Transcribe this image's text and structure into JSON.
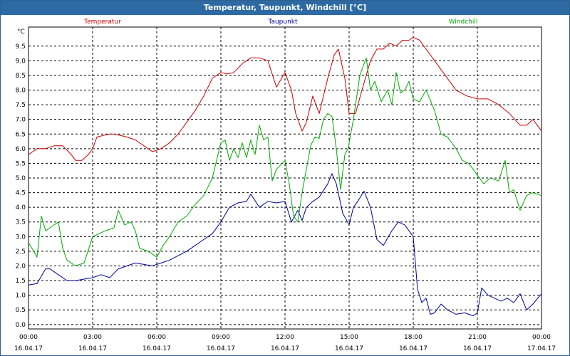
{
  "window": {
    "title": "Temperatur, Taupunkt, Windchill [°C]"
  },
  "chart_data": {
    "type": "line",
    "title": "Temperatur, Taupunkt, Windchill [°C]",
    "ylabel": "°C",
    "xlabel": "",
    "grid": true,
    "xlim": [
      0,
      24
    ],
    "ylim": [
      -0.15,
      10.15
    ],
    "yticks": [
      "0.0",
      "0.5",
      "1.0",
      "1.5",
      "2.0",
      "2.5",
      "3.0",
      "3.5",
      "4.0",
      "4.5",
      "5.0",
      "5.5",
      "6.0",
      "6.5",
      "7.0",
      "7.5",
      "8.0",
      "8.5",
      "9.0",
      "9.5"
    ],
    "xticks": [
      {
        "x": 0,
        "time": "00:00",
        "date": "16.04.17"
      },
      {
        "x": 3,
        "time": "03:00",
        "date": "16.04.17"
      },
      {
        "x": 6,
        "time": "06:00",
        "date": "16.04.17"
      },
      {
        "x": 9,
        "time": "09:00",
        "date": "16.04.17"
      },
      {
        "x": 12,
        "time": "12:00",
        "date": "16.04.17"
      },
      {
        "x": 15,
        "time": "15:00",
        "date": "16.04.17"
      },
      {
        "x": 18,
        "time": "18:00",
        "date": "16.04.17"
      },
      {
        "x": 21,
        "time": "21:00",
        "date": "16.04.17"
      },
      {
        "x": 24,
        "time": "00:00",
        "date": "17.04.17"
      }
    ],
    "series": [
      {
        "name": "Temperatur",
        "color": "#cc0000",
        "x": [
          0,
          0.4,
          0.8,
          1.2,
          1.6,
          2.0,
          2.2,
          2.5,
          2.8,
          3.0,
          3.2,
          3.5,
          3.8,
          4.0,
          4.3,
          4.6,
          5.0,
          5.4,
          5.8,
          6.2,
          6.6,
          7.0,
          7.4,
          7.8,
          8.2,
          8.6,
          9.0,
          9.3,
          9.6,
          10.0,
          10.4,
          10.8,
          11.2,
          11.6,
          12.0,
          12.3,
          12.5,
          12.8,
          13.0,
          13.3,
          13.6,
          14.0,
          14.3,
          14.5,
          14.8,
          15.0,
          15.3,
          15.6,
          16.0,
          16.3,
          16.6,
          16.9,
          17.2,
          17.5,
          17.8,
          18.0,
          18.3,
          18.6,
          19.0,
          19.5,
          20.0,
          20.5,
          21.0,
          21.5,
          22.0,
          22.5,
          23.0,
          23.3,
          23.6,
          24.0
        ],
        "y": [
          5.8,
          6.0,
          6.0,
          6.1,
          6.1,
          5.8,
          5.6,
          5.6,
          5.8,
          6.0,
          6.4,
          6.45,
          6.5,
          6.5,
          6.45,
          6.4,
          6.3,
          6.1,
          5.9,
          6.0,
          6.2,
          6.5,
          6.9,
          7.3,
          7.8,
          8.4,
          8.6,
          8.55,
          8.6,
          8.9,
          9.1,
          9.1,
          9.0,
          8.1,
          8.6,
          8.0,
          7.2,
          6.6,
          6.9,
          7.8,
          7.2,
          8.4,
          9.2,
          9.4,
          8.4,
          7.2,
          7.2,
          8.0,
          9.0,
          9.4,
          9.4,
          9.6,
          9.5,
          9.7,
          9.7,
          9.8,
          9.7,
          9.4,
          9.0,
          8.5,
          8.0,
          7.8,
          7.7,
          7.7,
          7.5,
          7.2,
          6.8,
          6.8,
          7.0,
          6.6
        ]
      },
      {
        "name": "Taupunkt",
        "color": "#000099",
        "x": [
          0,
          0.4,
          0.8,
          1.0,
          1.4,
          1.8,
          2.2,
          2.6,
          3.0,
          3.4,
          3.8,
          4.2,
          4.6,
          5.0,
          5.4,
          5.8,
          6.2,
          6.6,
          7.0,
          7.4,
          7.8,
          8.2,
          8.6,
          9.0,
          9.4,
          9.8,
          10.2,
          10.4,
          10.8,
          11.2,
          11.6,
          12.0,
          12.3,
          12.6,
          12.8,
          13.0,
          13.3,
          13.6,
          14.0,
          14.2,
          14.4,
          14.7,
          15.0,
          15.2,
          15.4,
          15.7,
          16.0,
          16.3,
          16.6,
          17.0,
          17.3,
          17.6,
          18.0,
          18.2,
          18.4,
          18.6,
          18.8,
          19.0,
          19.3,
          19.6,
          20.0,
          20.4,
          20.8,
          21.0,
          21.2,
          21.5,
          21.8,
          22.1,
          22.4,
          22.7,
          23.0,
          23.3,
          23.6,
          24.0
        ],
        "y": [
          1.35,
          1.4,
          1.9,
          1.9,
          1.7,
          1.5,
          1.5,
          1.55,
          1.6,
          1.7,
          1.6,
          1.9,
          2.0,
          2.1,
          2.05,
          2.0,
          2.1,
          2.2,
          2.35,
          2.5,
          2.7,
          2.9,
          3.1,
          3.5,
          4.0,
          4.15,
          4.2,
          4.45,
          4.0,
          4.2,
          4.15,
          4.2,
          3.5,
          3.9,
          3.55,
          4.0,
          4.2,
          4.35,
          4.8,
          5.15,
          4.8,
          3.8,
          3.4,
          4.0,
          4.2,
          4.55,
          4.0,
          2.9,
          2.7,
          3.2,
          3.5,
          3.4,
          3.0,
          1.2,
          0.75,
          0.9,
          0.35,
          0.4,
          0.7,
          0.5,
          0.35,
          0.4,
          0.3,
          0.4,
          1.25,
          1.0,
          0.9,
          0.8,
          0.9,
          0.75,
          1.05,
          0.5,
          0.7,
          1.05
        ]
      },
      {
        "name": "Windchill",
        "color": "#00aa00",
        "x": [
          0,
          0.4,
          0.6,
          0.8,
          1.0,
          1.4,
          1.6,
          1.8,
          2.2,
          2.6,
          3.0,
          3.3,
          3.6,
          4.0,
          4.2,
          4.5,
          4.8,
          5.0,
          5.2,
          5.6,
          6.0,
          6.3,
          6.6,
          7.0,
          7.4,
          7.8,
          8.2,
          8.6,
          9.0,
          9.2,
          9.4,
          9.6,
          9.8,
          10.0,
          10.2,
          10.4,
          10.6,
          10.8,
          11.0,
          11.2,
          11.4,
          11.6,
          12.0,
          12.2,
          12.4,
          12.6,
          12.8,
          13.0,
          13.2,
          13.4,
          13.6,
          13.8,
          14.0,
          14.2,
          14.4,
          14.6,
          14.8,
          14.95,
          15.2,
          15.5,
          15.8,
          16.0,
          16.2,
          16.5,
          16.8,
          17.0,
          17.2,
          17.4,
          17.6,
          17.8,
          18.0,
          18.3,
          18.6,
          19.0,
          19.3,
          19.6,
          20.0,
          20.3,
          20.6,
          21.0,
          21.3,
          21.6,
          22.0,
          22.3,
          22.5,
          22.7,
          23.0,
          23.3,
          23.6,
          24.0
        ],
        "y": [
          2.8,
          2.3,
          3.7,
          3.2,
          3.3,
          3.5,
          2.6,
          2.2,
          2.0,
          2.1,
          3.0,
          3.1,
          3.2,
          3.3,
          3.9,
          3.4,
          3.5,
          3.2,
          2.6,
          2.5,
          2.3,
          2.7,
          3.0,
          3.5,
          3.7,
          4.1,
          4.4,
          5.0,
          6.2,
          6.3,
          5.6,
          6.0,
          5.7,
          6.2,
          5.7,
          6.3,
          5.8,
          6.8,
          6.3,
          6.4,
          4.9,
          5.3,
          5.6,
          4.8,
          3.7,
          3.5,
          4.5,
          5.3,
          6.1,
          6.4,
          6.35,
          7.0,
          7.2,
          7.1,
          6.0,
          4.6,
          5.8,
          6.0,
          7.0,
          8.5,
          9.1,
          8.0,
          8.3,
          7.6,
          8.0,
          7.5,
          8.6,
          7.9,
          8.0,
          8.3,
          7.7,
          7.6,
          8.0,
          7.3,
          6.5,
          6.4,
          6.0,
          5.6,
          5.5,
          5.1,
          4.8,
          5.0,
          4.9,
          5.6,
          4.5,
          4.6,
          3.9,
          4.4,
          4.5,
          4.4
        ]
      }
    ]
  }
}
